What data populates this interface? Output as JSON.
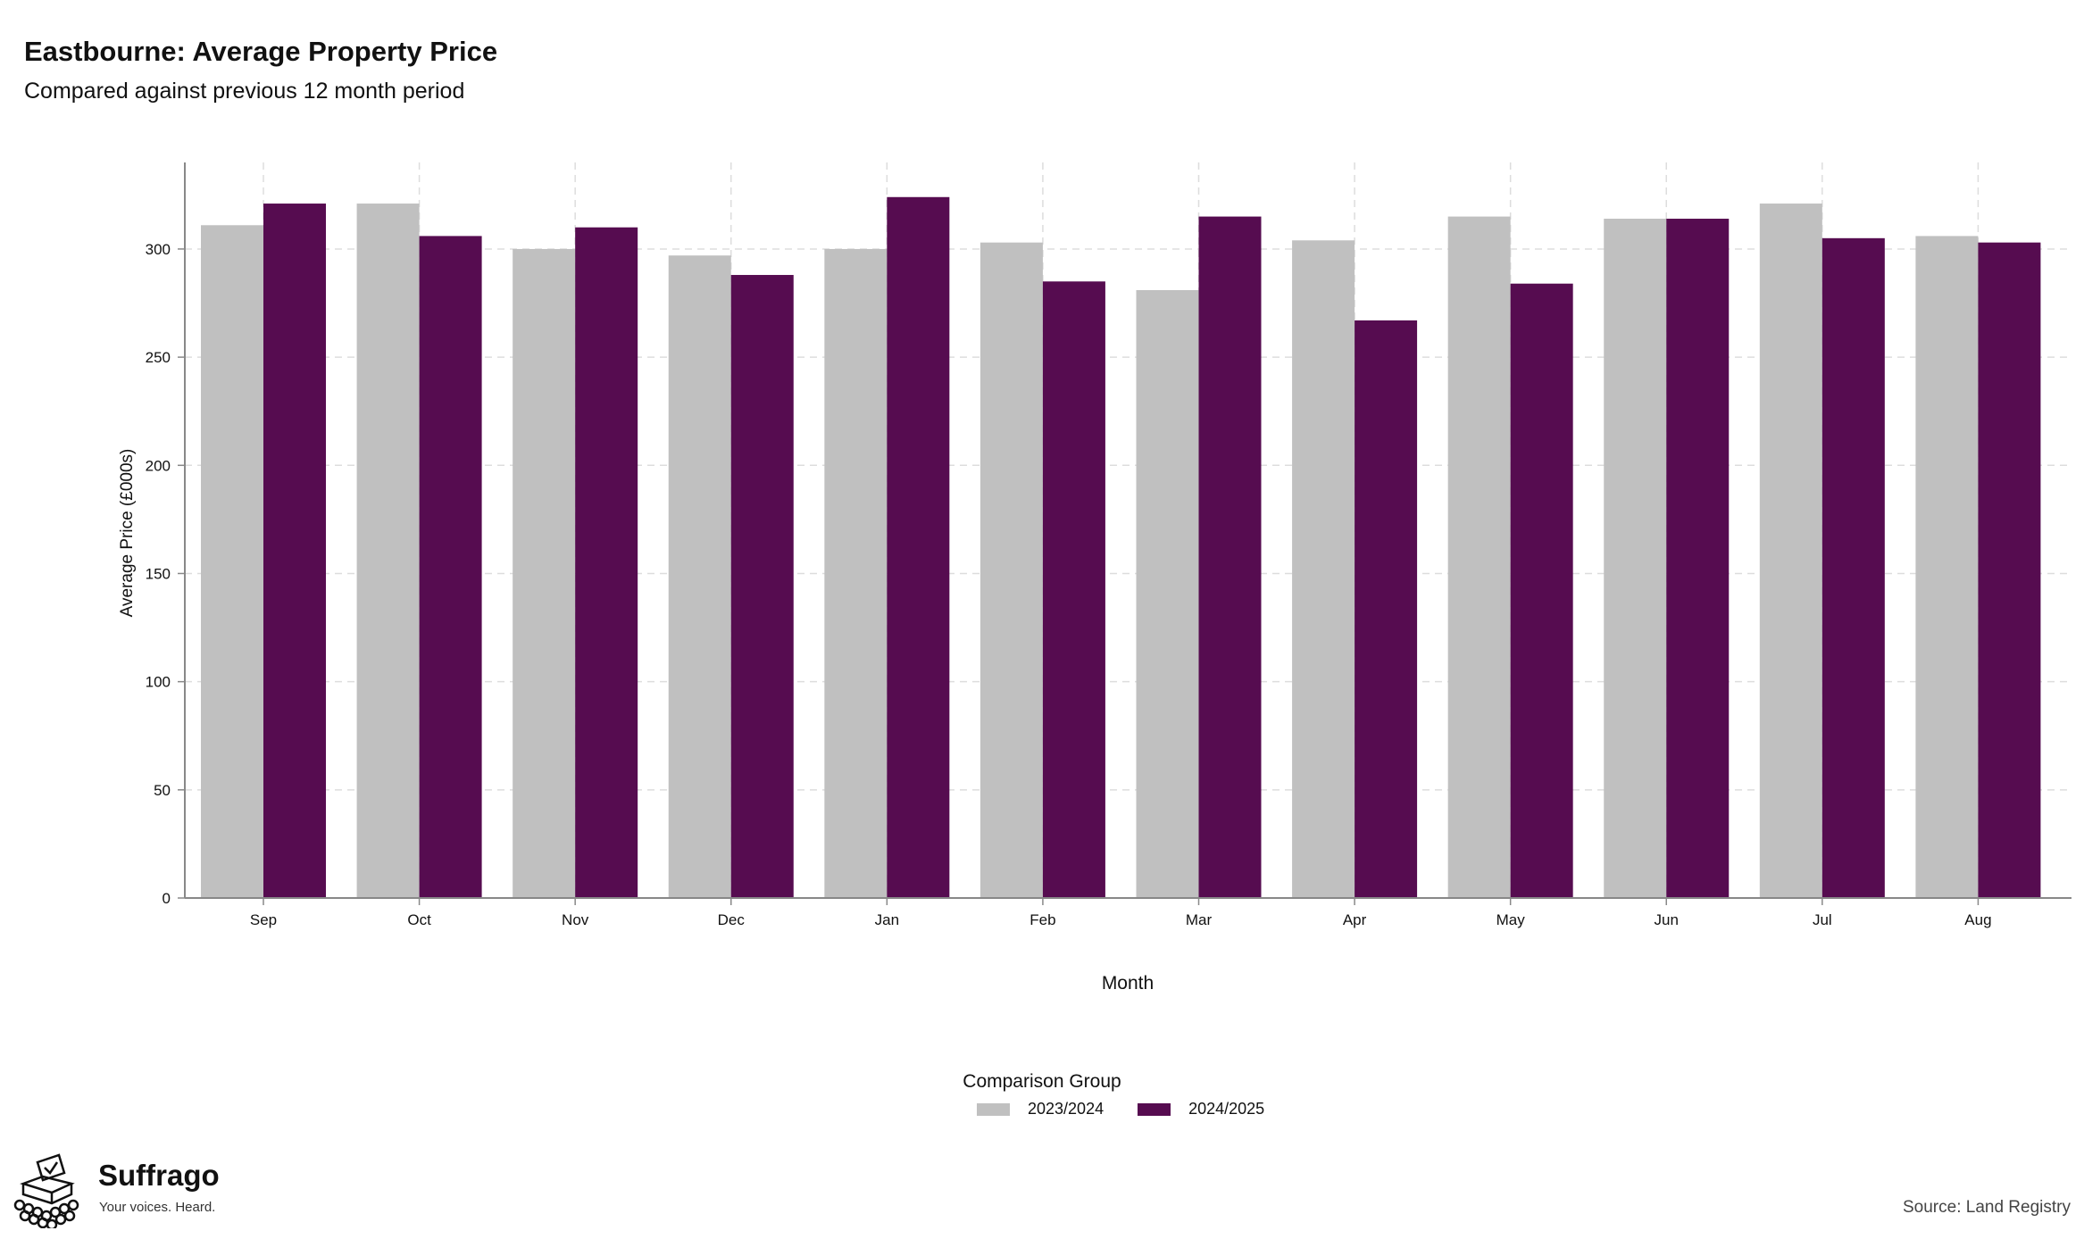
{
  "title": "Eastbourne: Average Property Price",
  "subtitle": "Compared against previous 12 month period",
  "legend_title": "Comparison Group",
  "source": "Source: Land Registry",
  "brand": {
    "name": "Suffrago",
    "tagline": "Your voices. Heard."
  },
  "colors": {
    "series_1": "#c0c0c0",
    "series_2": "#560c50",
    "axis": "#888888",
    "grid": "#dddddd"
  },
  "chart_data": {
    "type": "bar",
    "title": "Eastbourne: Average Property Price",
    "subtitle": "Compared against previous 12 month period",
    "xlabel": "Month",
    "ylabel": "Average Price (£000s)",
    "ylim": [
      0,
      340
    ],
    "yticks": [
      0,
      50,
      100,
      150,
      200,
      250,
      300
    ],
    "grid": true,
    "legend_position": "bottom",
    "categories": [
      "Sep",
      "Oct",
      "Nov",
      "Dec",
      "Jan",
      "Feb",
      "Mar",
      "Apr",
      "May",
      "Jun",
      "Jul",
      "Aug"
    ],
    "series": [
      {
        "name": "2023/2024",
        "values": [
          311,
          321,
          300,
          297,
          300,
          303,
          281,
          304,
          315,
          314,
          321,
          306
        ]
      },
      {
        "name": "2024/2025",
        "values": [
          321,
          306,
          310,
          288,
          324,
          285,
          315,
          267,
          284,
          314,
          305,
          303
        ]
      }
    ]
  }
}
